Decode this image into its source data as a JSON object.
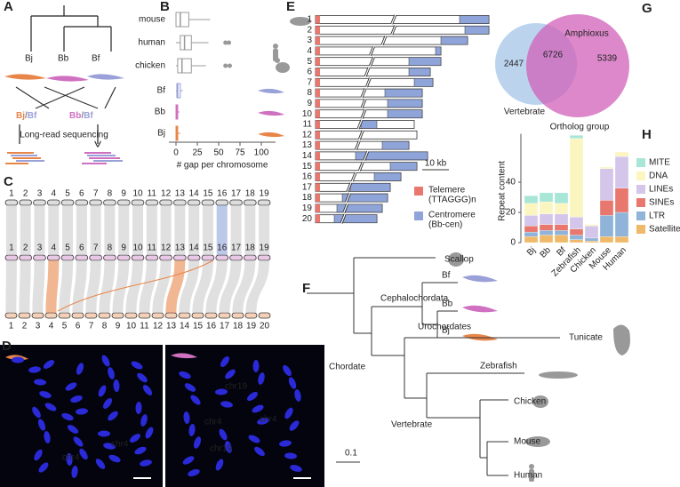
{
  "panels": [
    "A",
    "B",
    "C",
    "D",
    "E",
    "F",
    "G",
    "H"
  ],
  "A": {
    "leaves": [
      "Bj",
      "Bb",
      "Bf"
    ],
    "left_label": [
      "Bj",
      "/",
      "Bf"
    ],
    "right_label": [
      "Bb",
      "/",
      "Bf"
    ],
    "method": "Long-read sequencing"
  },
  "chart_data": [
    {
      "type": "boxplot",
      "xlabel": "# gap per chromosome",
      "categories": [
        "mouse",
        "human",
        "chicken",
        "Bf",
        "Bb",
        "Bj"
      ],
      "colors": [
        "#999999",
        "#999999",
        "#999999",
        "#9aa0d8",
        "#d070c0",
        "#e8864a"
      ],
      "series": [
        {
          "min": 0,
          "q1": 0,
          "median": 5,
          "q3": 15,
          "max": 40,
          "outliers": []
        },
        {
          "min": 0,
          "q1": 5,
          "median": 10,
          "q3": 18,
          "max": 38,
          "outliers": [
            58,
            62
          ]
        },
        {
          "min": 0,
          "q1": 2,
          "median": 7,
          "q3": 18,
          "max": 35,
          "outliers": [
            58,
            63
          ]
        },
        {
          "min": 0,
          "q1": 1,
          "median": 2,
          "q3": 5,
          "max": 8,
          "outliers": []
        },
        {
          "min": 0,
          "q1": 0,
          "median": 1,
          "q3": 2,
          "max": 4,
          "outliers": []
        },
        {
          "min": 0,
          "q1": 0,
          "median": 1,
          "q3": 2,
          "max": 5,
          "outliers": []
        }
      ],
      "xlim": [
        -3,
        110
      ],
      "xticks": [
        0,
        25,
        50,
        75,
        100
      ]
    },
    {
      "type": "stacked-bar",
      "ylabel": "Repeat content",
      "categories": [
        "Bj",
        "Bb",
        "Bf",
        "Zebrafish",
        "Chicken",
        "Mouse",
        "Human"
      ],
      "series": [
        {
          "name": "Satellites",
          "color": "#f0b96a",
          "values": [
            4,
            5,
            5,
            2,
            1,
            4,
            4
          ]
        },
        {
          "name": "LTR",
          "color": "#8fb3d9",
          "values": [
            3,
            3,
            3,
            3,
            2,
            14,
            16
          ]
        },
        {
          "name": "SINEs",
          "color": "#e8786e",
          "values": [
            4,
            4,
            4,
            4,
            0,
            10,
            16
          ]
        },
        {
          "name": "LINEs",
          "color": "#d4c6ea",
          "values": [
            7,
            7,
            7,
            8,
            8,
            21,
            21
          ]
        },
        {
          "name": "DNA",
          "color": "#fbf6c0",
          "values": [
            8,
            8,
            7,
            52,
            1,
            1,
            3
          ]
        },
        {
          "name": "MITE",
          "color": "#a8e6d8",
          "values": [
            5,
            6,
            7,
            2,
            0,
            0,
            0
          ]
        }
      ],
      "ylim": [
        0,
        72
      ],
      "yticks": [
        0,
        20,
        40
      ]
    }
  ],
  "C": {
    "top": [
      "1",
      "2",
      "3",
      "4",
      "5",
      "6",
      "7",
      "8",
      "9",
      "10",
      "11",
      "12",
      "13",
      "14",
      "15",
      "16",
      "17",
      "18",
      "19"
    ],
    "middle": [
      "1",
      "2",
      "3",
      "4",
      "5",
      "6",
      "7",
      "8",
      "9",
      "10",
      "11",
      "12",
      "13",
      "14",
      "15",
      "16",
      "17",
      "18",
      "19"
    ],
    "bottom": [
      "1",
      "2",
      "3",
      "4",
      "5",
      "6",
      "7",
      "8",
      "9",
      "10",
      "11",
      "12",
      "13",
      "14",
      "15",
      "16",
      "17",
      "18",
      "19",
      "20"
    ]
  },
  "D": {
    "left": [
      "chr4",
      "chr4"
    ],
    "right": [
      "chr19",
      "chr4",
      "chr4",
      "chr19"
    ]
  },
  "E": {
    "rows": [
      {
        "label": "1",
        "length": 65,
        "cen": [
          54,
          65
        ]
      },
      {
        "label": "2",
        "length": 65,
        "cen": [
          56,
          65
        ]
      },
      {
        "label": "3",
        "length": 57,
        "cen": [
          47,
          57
        ]
      },
      {
        "label": "4",
        "length": 47,
        "cen": [
          45,
          47
        ]
      },
      {
        "label": "5",
        "length": 47,
        "cen": [
          35,
          47
        ]
      },
      {
        "label": "6",
        "length": 43,
        "cen": [
          35,
          43
        ]
      },
      {
        "label": "7",
        "length": 44,
        "cen": [
          37,
          44
        ]
      },
      {
        "label": "8",
        "length": 40,
        "cen": [
          26,
          40
        ]
      },
      {
        "label": "9",
        "length": 40,
        "cen": [
          27,
          40
        ]
      },
      {
        "label": "10",
        "length": 40,
        "cen": [
          27,
          40
        ]
      },
      {
        "label": "11",
        "length": 37,
        "cen": [
          17,
          23
        ]
      },
      {
        "label": "12",
        "length": 38,
        "cen": null
      },
      {
        "label": "13",
        "length": 35,
        "cen": [
          25,
          35
        ]
      },
      {
        "label": "14",
        "length": 42,
        "cen": [
          15,
          42
        ]
      },
      {
        "label": "15",
        "length": 38,
        "cen": [
          28,
          38
        ]
      },
      {
        "label": "16",
        "length": 32,
        "cen": [
          22,
          32
        ]
      },
      {
        "label": "17",
        "length": 28,
        "cen": [
          13,
          28
        ]
      },
      {
        "label": "18",
        "length": 27,
        "cen": [
          10,
          27
        ]
      },
      {
        "label": "19",
        "length": 25,
        "cen": [
          8,
          25
        ]
      },
      {
        "label": "20",
        "length": 23,
        "cen": [
          7,
          23
        ]
      }
    ],
    "scale": "10 kb",
    "scale_kb": 10,
    "telomere": [
      "Telemere",
      "(TTAGGG)n"
    ],
    "centromere": [
      "Centromere",
      "(Bb-cen)"
    ]
  },
  "F": {
    "Scallop": "Scallop",
    "Cephalochordata": "Cephalochordata",
    "Bf": "Bf",
    "Bb": "Bb",
    "Bj": "Bj",
    "Chordate": "Chordate",
    "Urochordates": "Urochordates",
    "Tunicate": "Tunicate",
    "Zebrafish": "Zebrafish",
    "Vertebrate": "Vertebrate",
    "Chicken": "Chicken",
    "Mouse": "Mouse",
    "Human": "Human",
    "scale": "0.1"
  },
  "G": {
    "vertebrate_only": "2447",
    "shared": "6726",
    "amphioxus_only": "5339",
    "left": "Vertebrate",
    "right": "Amphioxus",
    "title": "Ortholog group"
  }
}
